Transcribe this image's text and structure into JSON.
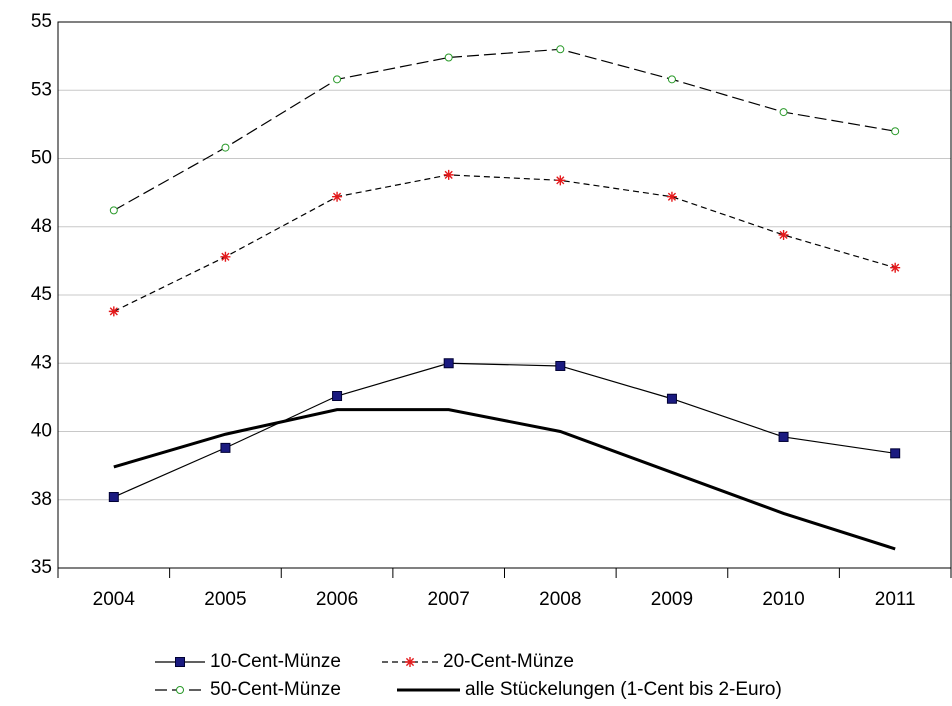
{
  "chart_data": {
    "type": "line",
    "categories": [
      "2004",
      "2005",
      "2006",
      "2007",
      "2008",
      "2009",
      "2010",
      "2011"
    ],
    "series": [
      {
        "name": "10-Cent-Münze",
        "color": "#1a1a80",
        "marker": "square",
        "line_style": "solid",
        "line_width": 1.2,
        "values": [
          37.6,
          39.4,
          41.3,
          42.5,
          42.4,
          41.2,
          39.8,
          39.2
        ]
      },
      {
        "name": "20-Cent-Münze",
        "color": "#e41a1c",
        "marker": "star",
        "line_style": "dashed",
        "line_width": 1.2,
        "values": [
          44.4,
          46.4,
          48.6,
          49.4,
          49.2,
          48.6,
          47.2,
          46.0
        ]
      },
      {
        "name": "50-Cent-Münze",
        "color": "#2a9a2a",
        "marker": "circle",
        "line_style": "long-dash",
        "line_width": 1.2,
        "values": [
          48.1,
          50.4,
          52.9,
          53.7,
          54.0,
          52.9,
          51.7,
          51.0
        ]
      },
      {
        "name": "alle Stückelungen (1-Cent bis 2-Euro)",
        "color": "#000000",
        "marker": "none",
        "line_style": "solid",
        "line_width": 3,
        "values": [
          38.7,
          39.9,
          40.8,
          40.8,
          40.0,
          38.5,
          37.0,
          35.7
        ]
      }
    ],
    "ylim": [
      35,
      55
    ],
    "yticks": [
      35,
      {
        "value": 37.5,
        "label": "38"
      },
      40,
      {
        "value": 42.5,
        "label": "43"
      },
      45,
      {
        "value": 47.5,
        "label": "48"
      },
      50,
      {
        "value": 52.5,
        "label": "53"
      },
      55
    ],
    "grid": true
  }
}
